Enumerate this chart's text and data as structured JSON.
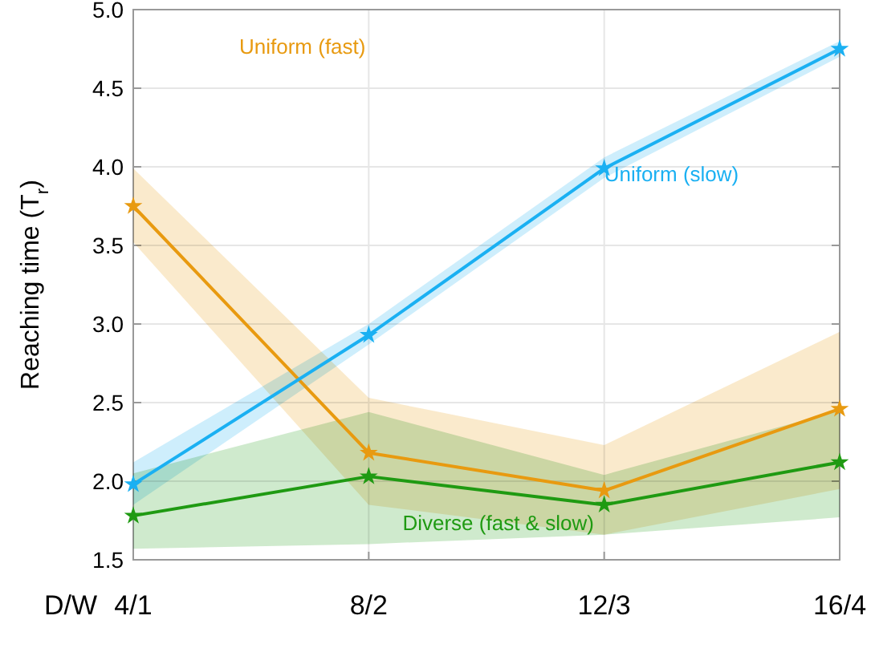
{
  "chart_data": {
    "type": "line",
    "xlabel": "D/W",
    "ylabel": "Reaching time (T$_{r}$)",
    "categories": [
      "4/1",
      "8/2",
      "12/3",
      "16/4"
    ],
    "ylim": [
      1.5,
      5.0
    ],
    "yticks": [
      {
        "value": 1.5,
        "label": "1.5"
      },
      {
        "value": 2,
        "label": "2.0"
      },
      {
        "value": 2.5,
        "label": "2.5"
      },
      {
        "value": 3,
        "label": "3.0"
      },
      {
        "value": 3.5,
        "label": "3.5"
      },
      {
        "value": 4,
        "label": "4.0"
      },
      {
        "value": 4.5,
        "label": "4.5"
      },
      {
        "value": 5,
        "label": "5.0"
      }
    ],
    "grid": true,
    "marker": "star",
    "line_style": "solid",
    "series": [
      {
        "name": "Uniform (fast)",
        "color": "#e89a10",
        "values": [
          3.75,
          2.18,
          1.94,
          2.46
        ],
        "lower": [
          3.52,
          1.85,
          1.66,
          1.95
        ],
        "upper": [
          3.99,
          2.53,
          2.23,
          2.95
        ]
      },
      {
        "name": "Uniform (slow)",
        "color": "#1ab0f2",
        "values": [
          1.98,
          2.93,
          3.99,
          4.75
        ],
        "lower": [
          1.85,
          2.87,
          3.93,
          4.7
        ],
        "upper": [
          2.12,
          3.0,
          4.06,
          4.8
        ]
      },
      {
        "name": "Diverse (fast & slow)",
        "color": "#1f9a12",
        "values": [
          1.78,
          2.03,
          1.85,
          2.12
        ],
        "lower": [
          1.57,
          1.6,
          1.66,
          1.77
        ],
        "upper": [
          2.05,
          2.44,
          2.04,
          2.45
        ]
      }
    ]
  }
}
